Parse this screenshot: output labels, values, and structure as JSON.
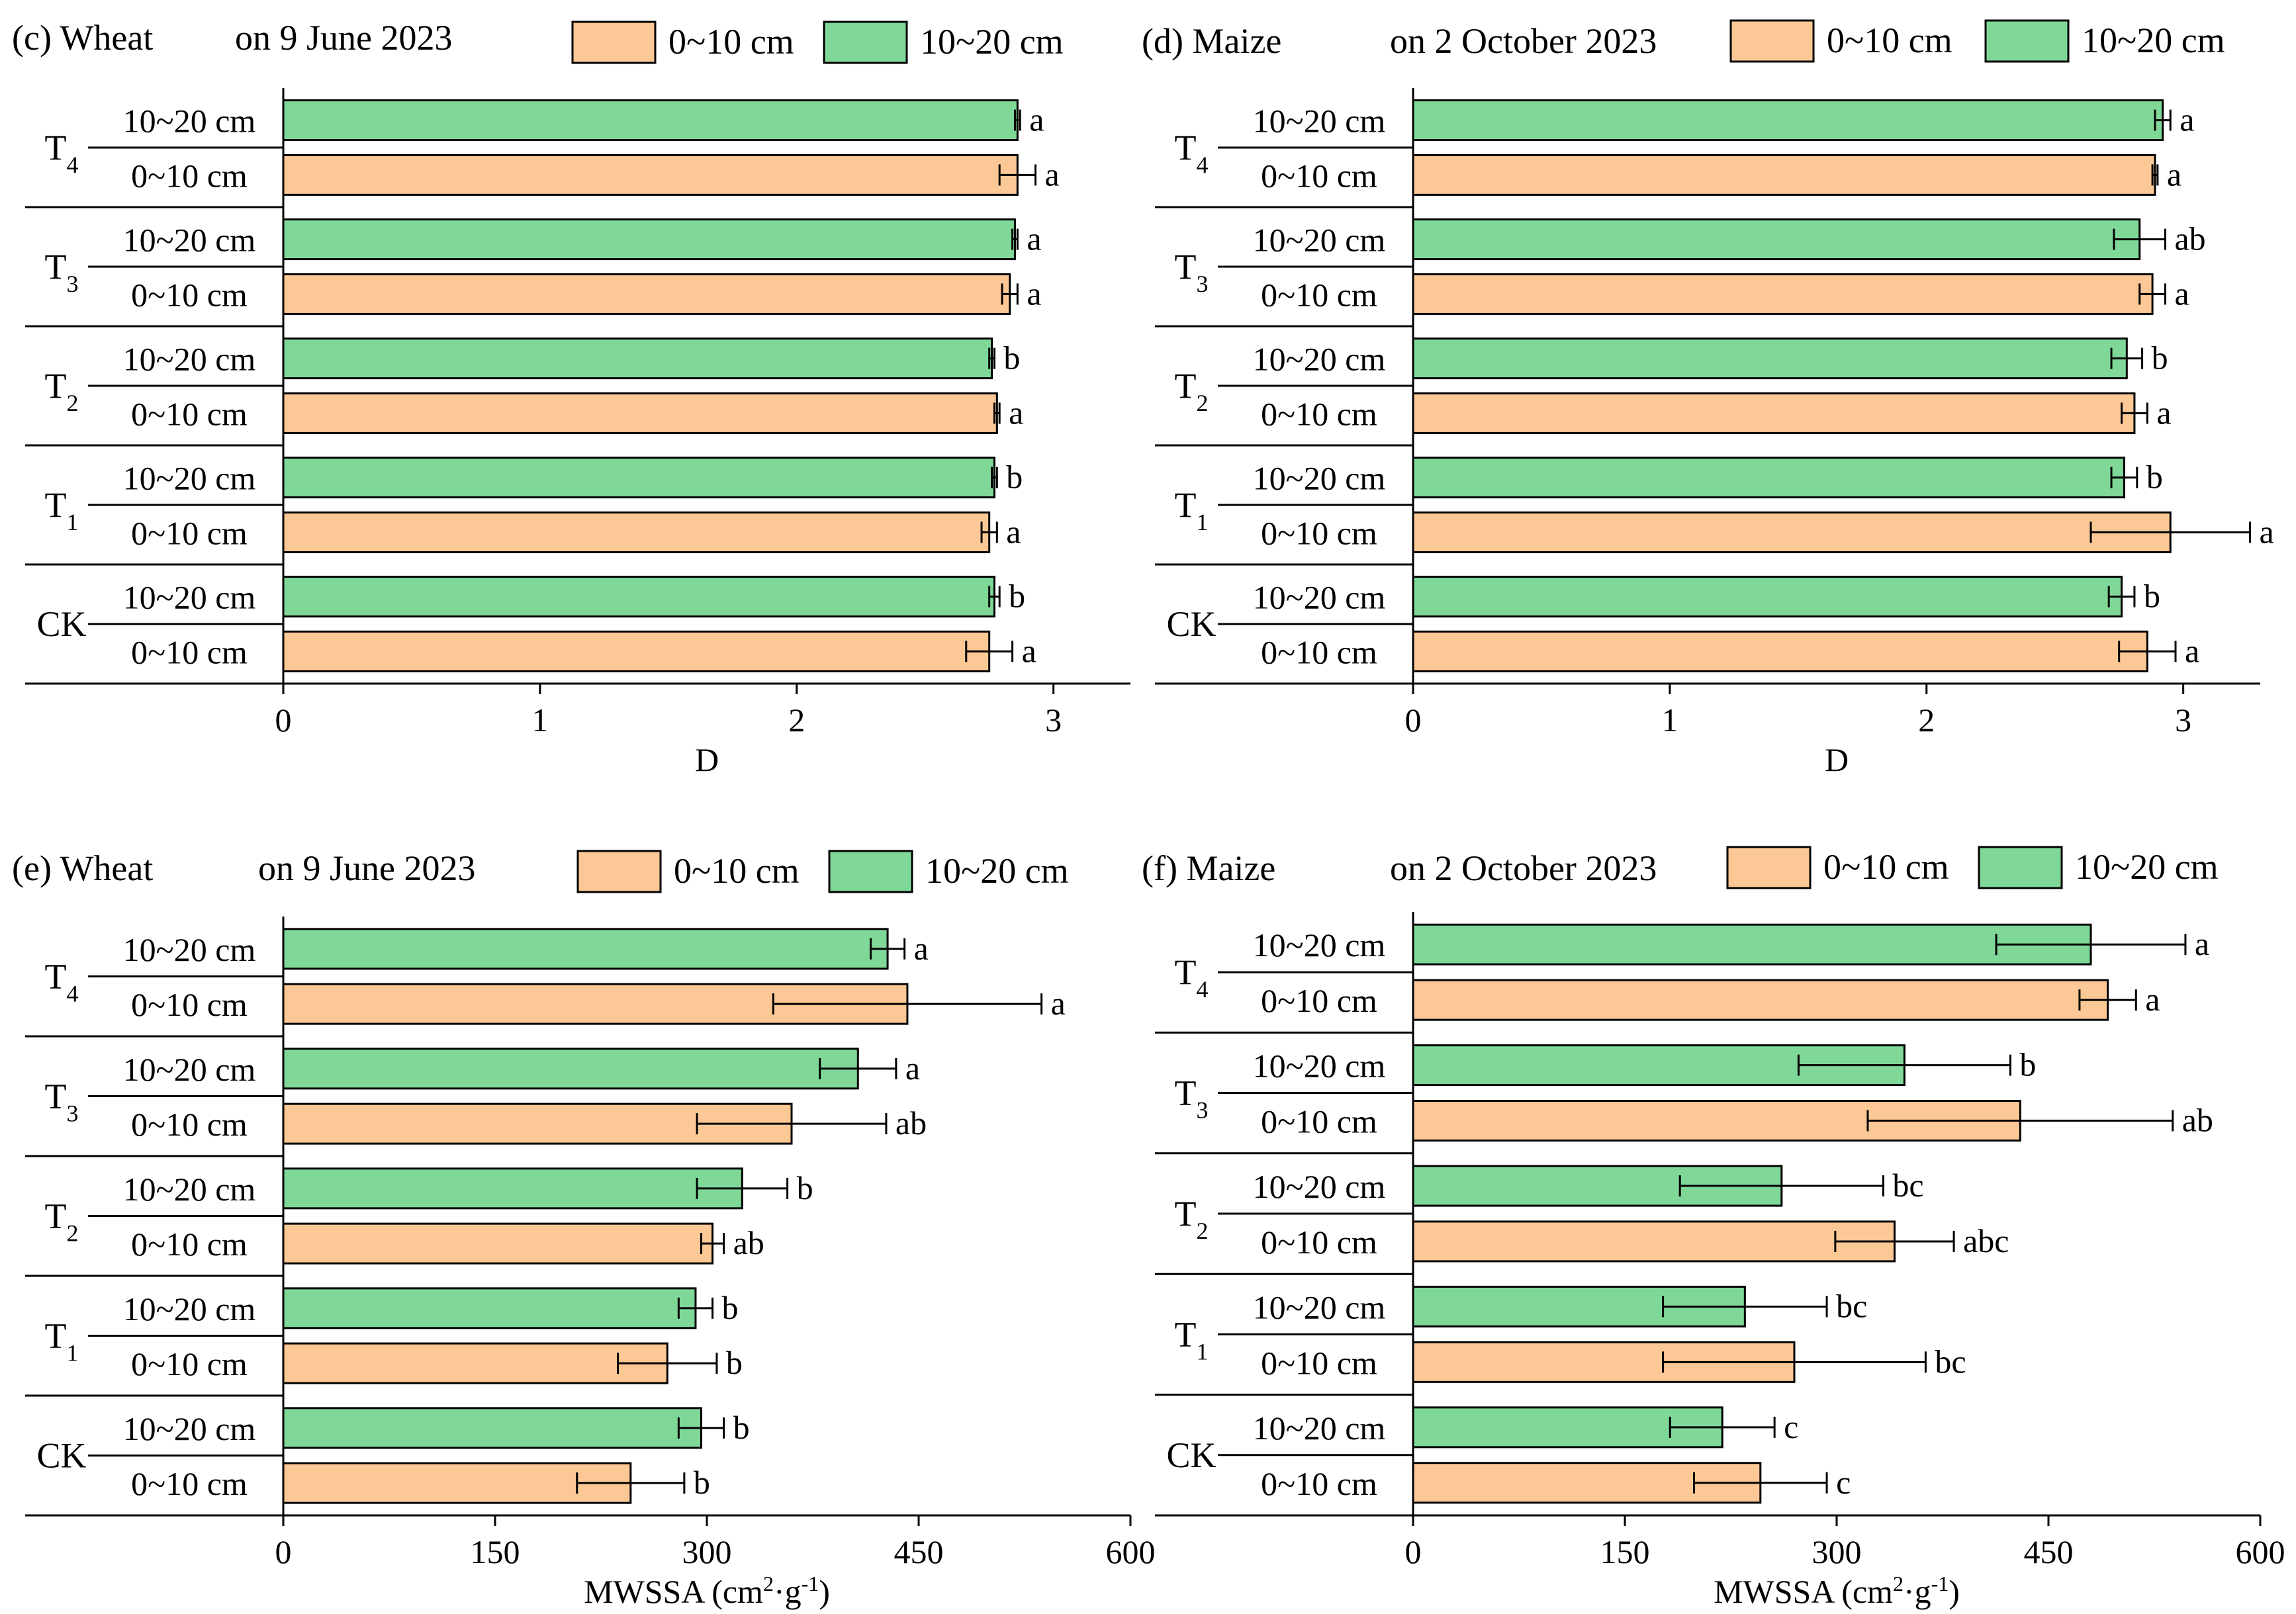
{
  "legend": {
    "shallow": "0~10 cm",
    "deep": "10~20 cm"
  },
  "colors": {
    "shallow": "#fcc896",
    "deep": "#7fd898",
    "stroke": "#000000"
  },
  "chart_data": [
    {
      "id": "c",
      "type": "bar",
      "orientation": "horizontal",
      "panel_label": "(c) Wheat",
      "date_label": "on 9 June 2023",
      "xlabel": "D",
      "xlim": [
        0,
        3.3
      ],
      "xticks": [
        "0",
        "1",
        "2",
        "3"
      ],
      "xtick_values": [
        0,
        1,
        2,
        3
      ],
      "groups": [
        {
          "label": "T",
          "sub": "4",
          "bars": [
            {
              "depth": "10~20 cm",
              "layer": "deep",
              "value": 2.86,
              "err": 0.01,
              "letter": "a"
            },
            {
              "depth": "0~10 cm",
              "layer": "shallow",
              "value": 2.86,
              "err": 0.07,
              "letter": "a"
            }
          ]
        },
        {
          "label": "T",
          "sub": "3",
          "bars": [
            {
              "depth": "10~20 cm",
              "layer": "deep",
              "value": 2.85,
              "err": 0.01,
              "letter": "a"
            },
            {
              "depth": "0~10 cm",
              "layer": "shallow",
              "value": 2.83,
              "err": 0.03,
              "letter": "a"
            }
          ]
        },
        {
          "label": "T",
          "sub": "2",
          "bars": [
            {
              "depth": "10~20 cm",
              "layer": "deep",
              "value": 2.76,
              "err": 0.01,
              "letter": "b"
            },
            {
              "depth": "0~10 cm",
              "layer": "shallow",
              "value": 2.78,
              "err": 0.01,
              "letter": "a"
            }
          ]
        },
        {
          "label": "T",
          "sub": "1",
          "bars": [
            {
              "depth": "10~20 cm",
              "layer": "deep",
              "value": 2.77,
              "err": 0.01,
              "letter": "b"
            },
            {
              "depth": "0~10 cm",
              "layer": "shallow",
              "value": 2.75,
              "err": 0.03,
              "letter": "a"
            }
          ]
        },
        {
          "label": "CK",
          "sub": "",
          "bars": [
            {
              "depth": "10~20 cm",
              "layer": "deep",
              "value": 2.77,
              "err": 0.02,
              "letter": "b"
            },
            {
              "depth": "0~10 cm",
              "layer": "shallow",
              "value": 2.75,
              "err": 0.09,
              "letter": "a"
            }
          ]
        }
      ]
    },
    {
      "id": "d",
      "type": "bar",
      "orientation": "horizontal",
      "panel_label": "(d) Maize",
      "date_label": "on 2 October 2023",
      "xlabel": "D",
      "xlim": [
        0,
        3.3
      ],
      "xticks": [
        "0",
        "1",
        "2",
        "3"
      ],
      "xtick_values": [
        0,
        1,
        2,
        3
      ],
      "groups": [
        {
          "label": "T",
          "sub": "4",
          "bars": [
            {
              "depth": "10~20 cm",
              "layer": "deep",
              "value": 2.92,
              "err": 0.03,
              "letter": "a"
            },
            {
              "depth": "0~10 cm",
              "layer": "shallow",
              "value": 2.89,
              "err": 0.01,
              "letter": "a"
            }
          ]
        },
        {
          "label": "T",
          "sub": "3",
          "bars": [
            {
              "depth": "10~20 cm",
              "layer": "deep",
              "value": 2.83,
              "err": 0.1,
              "letter": "ab"
            },
            {
              "depth": "0~10 cm",
              "layer": "shallow",
              "value": 2.88,
              "err": 0.05,
              "letter": "a"
            }
          ]
        },
        {
          "label": "T",
          "sub": "2",
          "bars": [
            {
              "depth": "10~20 cm",
              "layer": "deep",
              "value": 2.78,
              "err": 0.06,
              "letter": "b"
            },
            {
              "depth": "0~10 cm",
              "layer": "shallow",
              "value": 2.81,
              "err": 0.05,
              "letter": "a"
            }
          ]
        },
        {
          "label": "T",
          "sub": "1",
          "bars": [
            {
              "depth": "10~20 cm",
              "layer": "deep",
              "value": 2.77,
              "err": 0.05,
              "letter": "b"
            },
            {
              "depth": "0~10 cm",
              "layer": "shallow",
              "value": 2.95,
              "err": 0.31,
              "letter": "a"
            }
          ]
        },
        {
          "label": "CK",
          "sub": "",
          "bars": [
            {
              "depth": "10~20 cm",
              "layer": "deep",
              "value": 2.76,
              "err": 0.05,
              "letter": "b"
            },
            {
              "depth": "0~10 cm",
              "layer": "shallow",
              "value": 2.86,
              "err": 0.11,
              "letter": "a"
            }
          ]
        }
      ]
    },
    {
      "id": "e",
      "type": "bar",
      "orientation": "horizontal",
      "panel_label": "(e) Wheat",
      "date_label": "on 9 June 2023",
      "xlabel": "MWSSA (cm",
      "xlabel_sup": "2",
      "xlabel_mid": "·g",
      "xlabel_sup2": "-1",
      "xlabel_end": ")",
      "xlim": [
        0,
        600
      ],
      "xticks": [
        "0",
        "150",
        "300",
        "450",
        "600"
      ],
      "xtick_values": [
        0,
        150,
        300,
        450,
        600
      ],
      "groups": [
        {
          "label": "T",
          "sub": "4",
          "bars": [
            {
              "depth": "10~20 cm",
              "layer": "deep",
              "value": 428,
              "err": 12,
              "letter": "a"
            },
            {
              "depth": "0~10 cm",
              "layer": "shallow",
              "value": 442,
              "err": 95,
              "letter": "a"
            }
          ]
        },
        {
          "label": "T",
          "sub": "3",
          "bars": [
            {
              "depth": "10~20 cm",
              "layer": "deep",
              "value": 407,
              "err": 27,
              "letter": "a"
            },
            {
              "depth": "0~10 cm",
              "layer": "shallow",
              "value": 360,
              "err": 67,
              "letter": "ab"
            }
          ]
        },
        {
          "label": "T",
          "sub": "2",
          "bars": [
            {
              "depth": "10~20 cm",
              "layer": "deep",
              "value": 325,
              "err": 32,
              "letter": "b"
            },
            {
              "depth": "0~10 cm",
              "layer": "shallow",
              "value": 304,
              "err": 8,
              "letter": "ab"
            }
          ]
        },
        {
          "label": "T",
          "sub": "1",
          "bars": [
            {
              "depth": "10~20 cm",
              "layer": "deep",
              "value": 292,
              "err": 12,
              "letter": "b"
            },
            {
              "depth": "0~10 cm",
              "layer": "shallow",
              "value": 272,
              "err": 35,
              "letter": "b"
            }
          ]
        },
        {
          "label": "CK",
          "sub": "",
          "bars": [
            {
              "depth": "10~20 cm",
              "layer": "deep",
              "value": 296,
              "err": 16,
              "letter": "b"
            },
            {
              "depth": "0~10 cm",
              "layer": "shallow",
              "value": 246,
              "err": 38,
              "letter": "b"
            }
          ]
        }
      ]
    },
    {
      "id": "f",
      "type": "bar",
      "orientation": "horizontal",
      "panel_label": "(f) Maize",
      "date_label": "on 2 October 2023",
      "xlabel": "MWSSA (cm",
      "xlabel_sup": "2",
      "xlabel_mid": "·g",
      "xlabel_sup2": "-1",
      "xlabel_end": ")",
      "xlim": [
        0,
        600
      ],
      "xticks": [
        "0",
        "150",
        "300",
        "450",
        "600"
      ],
      "xtick_values": [
        0,
        150,
        300,
        450,
        600
      ],
      "groups": [
        {
          "label": "T",
          "sub": "4",
          "bars": [
            {
              "depth": "10~20 cm",
              "layer": "deep",
              "value": 480,
              "err": 67,
              "letter": "a"
            },
            {
              "depth": "0~10 cm",
              "layer": "shallow",
              "value": 492,
              "err": 20,
              "letter": "a"
            }
          ]
        },
        {
          "label": "T",
          "sub": "3",
          "bars": [
            {
              "depth": "10~20 cm",
              "layer": "deep",
              "value": 348,
              "err": 75,
              "letter": "b"
            },
            {
              "depth": "0~10 cm",
              "layer": "shallow",
              "value": 430,
              "err": 108,
              "letter": "ab"
            }
          ]
        },
        {
          "label": "T",
          "sub": "2",
          "bars": [
            {
              "depth": "10~20 cm",
              "layer": "deep",
              "value": 261,
              "err": 72,
              "letter": "bc"
            },
            {
              "depth": "0~10 cm",
              "layer": "shallow",
              "value": 341,
              "err": 42,
              "letter": "abc"
            }
          ]
        },
        {
          "label": "T",
          "sub": "1",
          "bars": [
            {
              "depth": "10~20 cm",
              "layer": "deep",
              "value": 235,
              "err": 58,
              "letter": "bc"
            },
            {
              "depth": "0~10 cm",
              "layer": "shallow",
              "value": 270,
              "err": 93,
              "letter": "bc"
            }
          ]
        },
        {
          "label": "CK",
          "sub": "",
          "bars": [
            {
              "depth": "10~20 cm",
              "layer": "deep",
              "value": 219,
              "err": 37,
              "letter": "c"
            },
            {
              "depth": "0~10 cm",
              "layer": "shallow",
              "value": 246,
              "err": 47,
              "letter": "c"
            }
          ]
        }
      ]
    }
  ]
}
